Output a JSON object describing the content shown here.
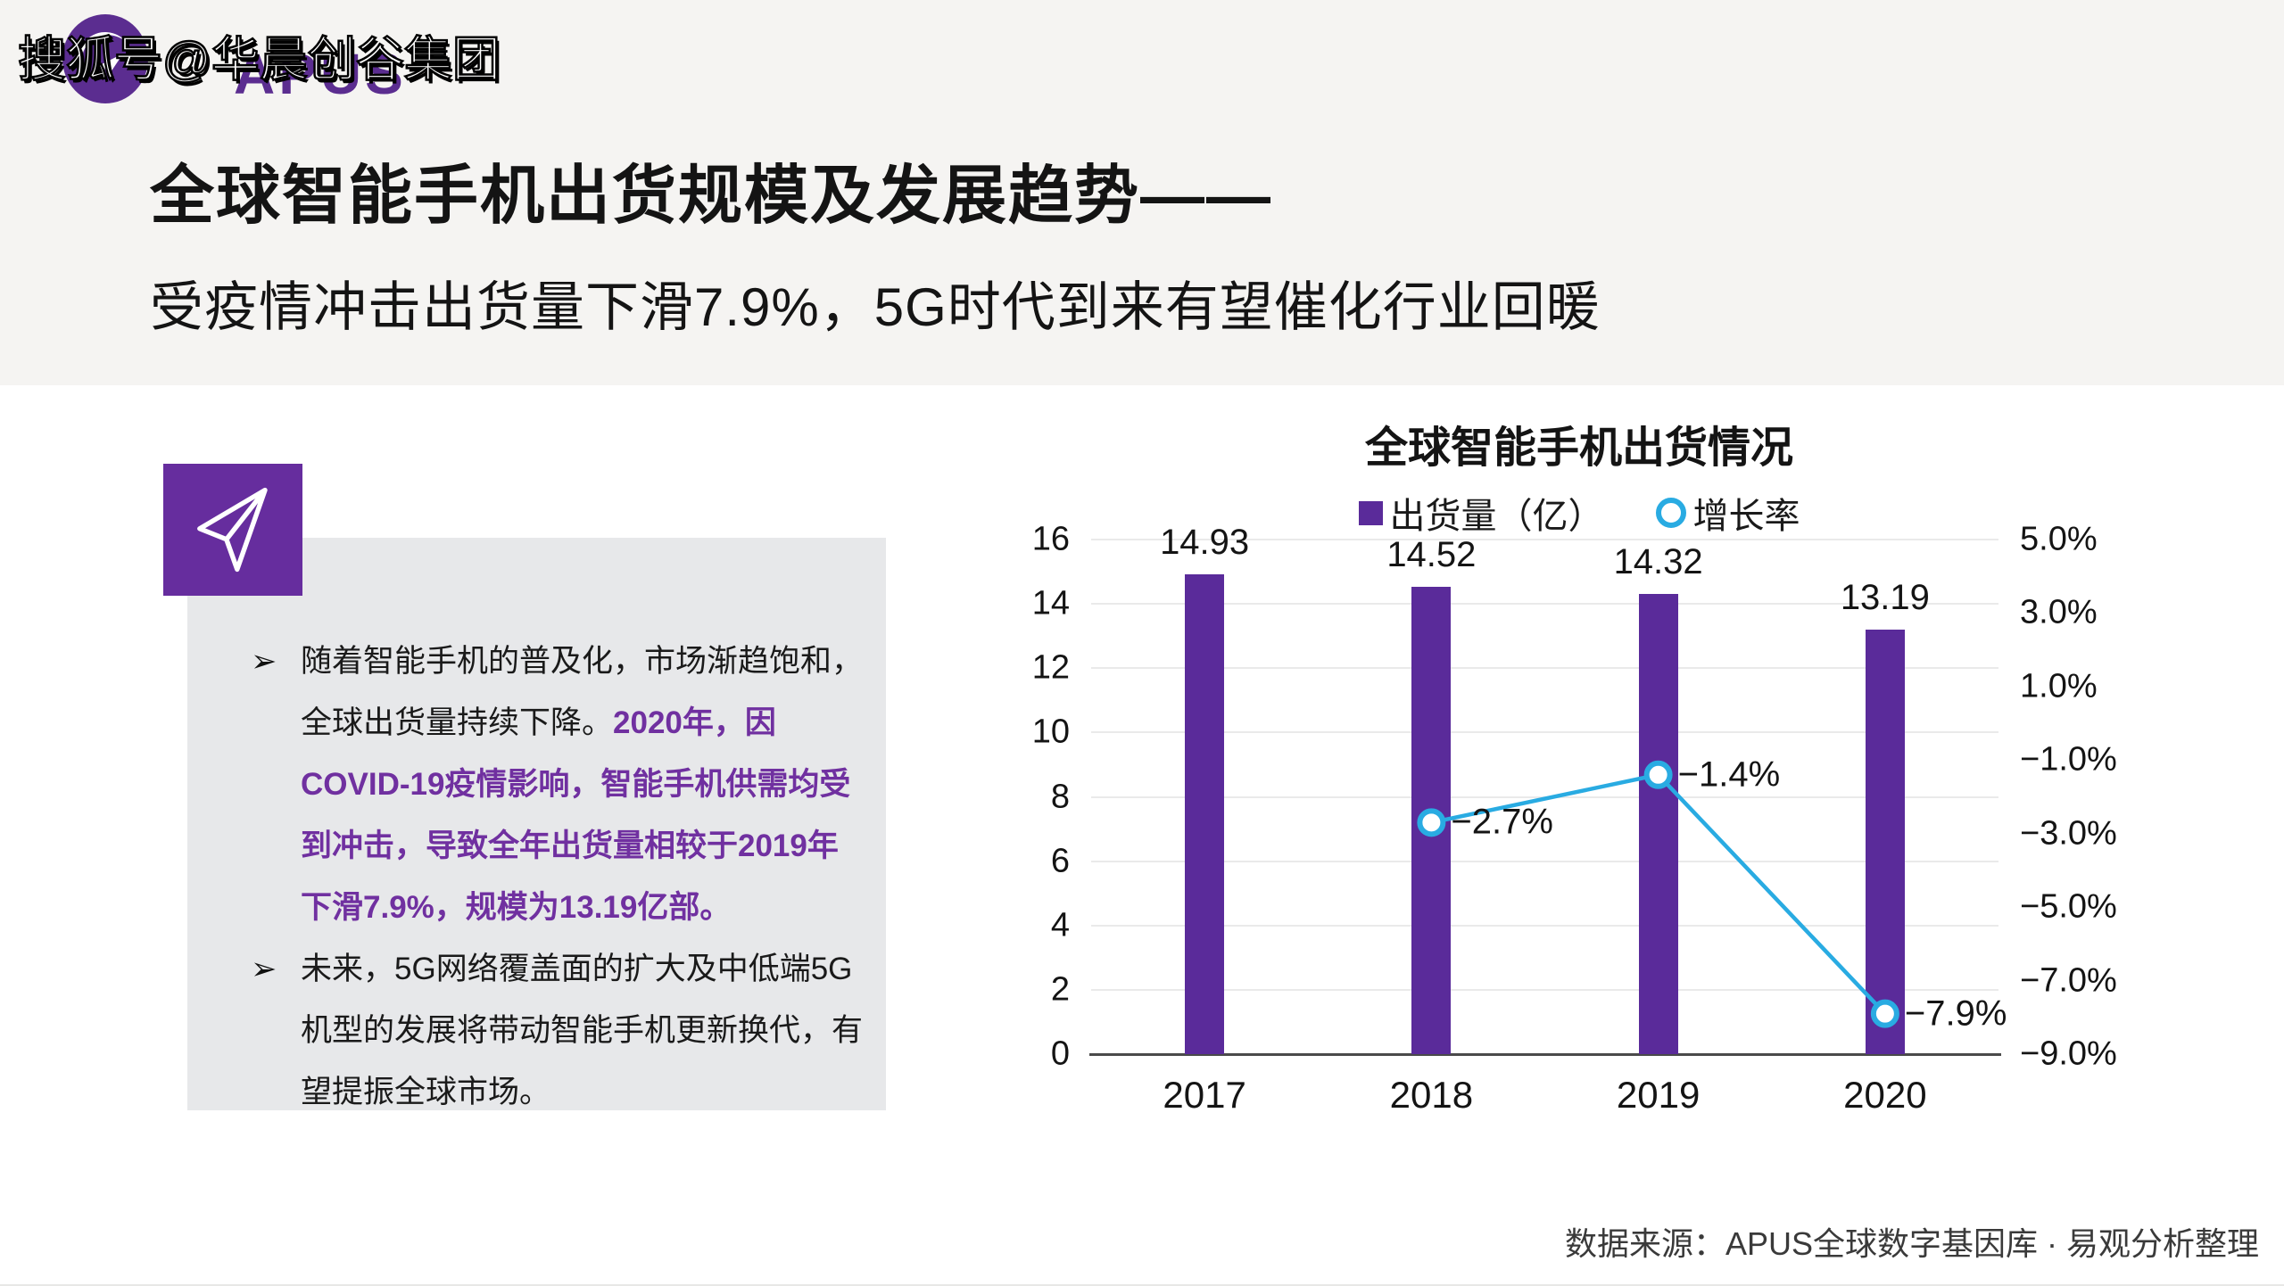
{
  "watermark": "搜狐号@华晨创谷集团",
  "logo": {
    "brand": "APUS",
    "emblem": "swallow-moon-icon"
  },
  "header": {
    "title": "全球智能手机出货规模及发展趋势——",
    "subtitle": "受疫情冲击出货量下滑7.9%，5G时代到来有望催化行业回暖"
  },
  "insights": {
    "bullet_glyph": "➢",
    "bullets": [
      {
        "black": "随着智能手机的普及化，市场渐趋饱和，全球出货量持续下降。",
        "purple": "2020年，因COVID-19疫情影响，智能手机供需均受到冲击，导致全年出货量相较于2019年下滑7.9%，规模为13.19亿部。"
      },
      {
        "black": "未来，5G网络覆盖面的扩大及中低端5G机型的发展将带动智能手机更新换代，有望提振全球市场。",
        "purple": ""
      }
    ]
  },
  "chart_data": {
    "type": "bar",
    "subtype": "dual-axis-bar-and-line",
    "title": "全球智能手机出货情况",
    "categories": [
      "2017",
      "2018",
      "2019",
      "2020"
    ],
    "series": [
      {
        "name": "出货量（亿）",
        "type": "bar",
        "axis": "left",
        "values": [
          14.93,
          14.52,
          14.32,
          13.19
        ],
        "labels": [
          "14.93",
          "14.52",
          "14.32",
          "13.19"
        ],
        "color": "#5a2b9a"
      },
      {
        "name": "增长率",
        "type": "line",
        "axis": "right",
        "values": [
          null,
          -2.7,
          -1.4,
          -7.9
        ],
        "labels": [
          "",
          "−2.7%",
          "−1.4%",
          "−7.9%"
        ],
        "color": "#29abe2"
      }
    ],
    "left_axis": {
      "min": 0,
      "max": 16,
      "step": 2,
      "ticks": [
        "0",
        "2",
        "4",
        "6",
        "8",
        "10",
        "12",
        "14",
        "16"
      ]
    },
    "right_axis": {
      "min": -9,
      "max": 5,
      "step": 2,
      "ticks": [
        "5.0%",
        "3.0%",
        "1.0%",
        "−1.0%",
        "−3.0%",
        "−5.0%",
        "−7.0%",
        "−9.0%"
      ]
    },
    "grid": true,
    "legend_position": "top-center"
  },
  "footer": {
    "source": "数据来源：APUS全球数字基因库 · 易观分析整理"
  },
  "colors": {
    "bar_purple": "#5a2b9a",
    "line_cyan": "#29abe2",
    "text_purple": "#7030a0",
    "icon_tile_purple": "#662d9e",
    "brand_purple": "#5b2d90",
    "header_bg": "#f5f4f2",
    "panel_bg": "#e7e8ea",
    "axis_line": "#4a4a4a",
    "gridline": "#eaeaea"
  }
}
